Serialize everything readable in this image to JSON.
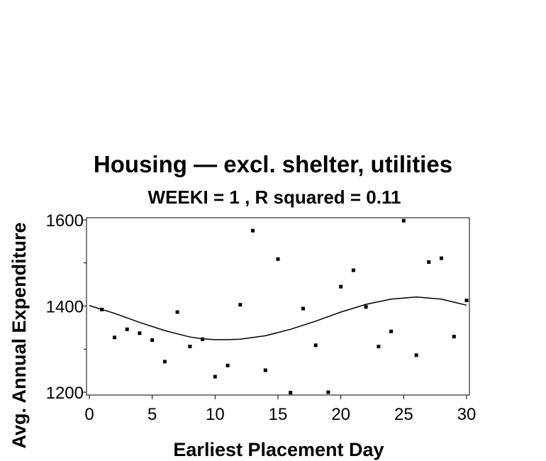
{
  "chart_data": {
    "type": "scatter",
    "title": "Housing — excl. shelter, utilities",
    "subtitle": "WEEKI = 1 , R squared = 0.11",
    "xlabel": "Earliest Placement Day",
    "ylabel": "Avg. Annual Expenditure",
    "xlim": [
      0,
      30
    ],
    "ylim": [
      1200,
      1600
    ],
    "x_ticks": [
      0,
      5,
      10,
      15,
      20,
      25,
      30
    ],
    "y_ticks": [
      1200,
      1400,
      1600
    ],
    "y_minor_ticks": [
      1300,
      1500
    ],
    "grid": false,
    "legend": "none",
    "points": [
      {
        "x": 1,
        "y": 1392
      },
      {
        "x": 2,
        "y": 1327
      },
      {
        "x": 3,
        "y": 1346
      },
      {
        "x": 4,
        "y": 1337
      },
      {
        "x": 5,
        "y": 1321
      },
      {
        "x": 6,
        "y": 1271
      },
      {
        "x": 7,
        "y": 1386
      },
      {
        "x": 8,
        "y": 1306
      },
      {
        "x": 9,
        "y": 1323
      },
      {
        "x": 10,
        "y": 1236
      },
      {
        "x": 11,
        "y": 1262
      },
      {
        "x": 12,
        "y": 1403
      },
      {
        "x": 13,
        "y": 1575
      },
      {
        "x": 14,
        "y": 1251
      },
      {
        "x": 15,
        "y": 1509
      },
      {
        "x": 16,
        "y": 1199
      },
      {
        "x": 17,
        "y": 1394
      },
      {
        "x": 18,
        "y": 1309
      },
      {
        "x": 19,
        "y": 1200
      },
      {
        "x": 20,
        "y": 1445
      },
      {
        "x": 21,
        "y": 1483
      },
      {
        "x": 22,
        "y": 1398
      },
      {
        "x": 23,
        "y": 1306
      },
      {
        "x": 24,
        "y": 1341
      },
      {
        "x": 25,
        "y": 1598
      },
      {
        "x": 26,
        "y": 1286
      },
      {
        "x": 27,
        "y": 1502
      },
      {
        "x": 28,
        "y": 1511
      },
      {
        "x": 29,
        "y": 1329
      },
      {
        "x": 30,
        "y": 1413
      }
    ],
    "fit_curve": [
      {
        "x": 0,
        "y": 1401
      },
      {
        "x": 2,
        "y": 1383
      },
      {
        "x": 4,
        "y": 1362
      },
      {
        "x": 6,
        "y": 1343
      },
      {
        "x": 8,
        "y": 1328
      },
      {
        "x": 9,
        "y": 1324
      },
      {
        "x": 10,
        "y": 1322
      },
      {
        "x": 11,
        "y": 1322
      },
      {
        "x": 12,
        "y": 1323
      },
      {
        "x": 14,
        "y": 1331
      },
      {
        "x": 16,
        "y": 1346
      },
      {
        "x": 18,
        "y": 1365
      },
      {
        "x": 20,
        "y": 1386
      },
      {
        "x": 22,
        "y": 1404
      },
      {
        "x": 24,
        "y": 1416
      },
      {
        "x": 26,
        "y": 1421
      },
      {
        "x": 28,
        "y": 1416
      },
      {
        "x": 30,
        "y": 1402
      }
    ],
    "colors": {
      "points": "#000000",
      "curve": "#000000",
      "axes": "#000000",
      "background": "#ffffff"
    }
  }
}
